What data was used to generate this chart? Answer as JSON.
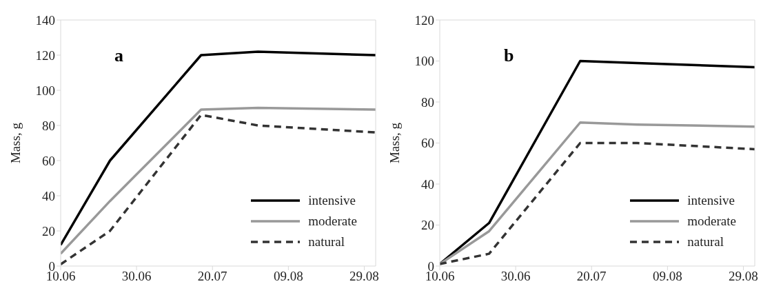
{
  "chart_data": [
    {
      "type": "line",
      "annotations": [
        "a"
      ],
      "ylabel": "Mass, g",
      "x": [
        "--06-10",
        "--06-23",
        "--07-17",
        "--08-01",
        "--09-01"
      ],
      "xlim": [
        "--06-10",
        "--09-01"
      ],
      "xticks": [
        {
          "value": "--06-10",
          "label": "10.06"
        },
        {
          "value": "--06-30",
          "label": "30.06"
        },
        {
          "value": "--07-20",
          "label": "20.07"
        },
        {
          "value": "--08-09",
          "label": "09.08"
        },
        {
          "value": "--08-29",
          "label": "29.08"
        }
      ],
      "ylim": [
        0,
        140
      ],
      "yticks": [
        0,
        20,
        40,
        60,
        80,
        100,
        120,
        140
      ],
      "grid": false,
      "legend": "bottom right",
      "marker": "none",
      "series": [
        {
          "name": "intensive",
          "color": "#000000",
          "line_style": "solid",
          "values": [
            12,
            60,
            120,
            122,
            120
          ]
        },
        {
          "name": "moderate",
          "color": "#999999",
          "line_style": "solid",
          "values": [
            7,
            37,
            89,
            90,
            89
          ]
        },
        {
          "name": "natural",
          "color": "#333333",
          "line_style": "dashed",
          "values": [
            1,
            20,
            86,
            80,
            76
          ]
        }
      ]
    },
    {
      "type": "line",
      "annotations": [
        "b"
      ],
      "ylabel": "Mass, g",
      "x": [
        "--06-10",
        "--06-23",
        "--07-17",
        "--08-01",
        "--09-01"
      ],
      "xlim": [
        "--06-10",
        "--09-01"
      ],
      "xticks": [
        {
          "value": "--06-10",
          "label": "10.06"
        },
        {
          "value": "--06-30",
          "label": "30.06"
        },
        {
          "value": "--07-20",
          "label": "20.07"
        },
        {
          "value": "--08-09",
          "label": "09.08"
        },
        {
          "value": "--08-29",
          "label": "29.08"
        }
      ],
      "ylim": [
        0,
        120
      ],
      "yticks": [
        0,
        20,
        40,
        60,
        80,
        100,
        120
      ],
      "grid": false,
      "legend": "bottom right",
      "marker": "none",
      "series": [
        {
          "name": "intensive",
          "color": "#000000",
          "line_style": "solid",
          "values": [
            1,
            21,
            100,
            99,
            97
          ]
        },
        {
          "name": "moderate",
          "color": "#999999",
          "line_style": "solid",
          "values": [
            1,
            17,
            70,
            69,
            68
          ]
        },
        {
          "name": "natural",
          "color": "#333333",
          "line_style": "dashed",
          "values": [
            1,
            6,
            60,
            60,
            57
          ]
        }
      ]
    }
  ]
}
